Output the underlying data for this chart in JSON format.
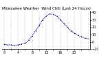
{
  "title": "Milwaukee Weather  Wind Chill (Last 24 Hours)",
  "line_color": "#0000dd",
  "marker_color": "#000000",
  "background_color": "#ffffff",
  "grid_color": "#888888",
  "hours": [
    0,
    1,
    2,
    3,
    4,
    5,
    6,
    7,
    8,
    9,
    10,
    11,
    12,
    13,
    14,
    15,
    16,
    17,
    18,
    19,
    20,
    21,
    22,
    23,
    24
  ],
  "values": [
    -3,
    -4,
    -4,
    -5,
    -4,
    -3,
    -2,
    2,
    8,
    15,
    22,
    30,
    35,
    38,
    37,
    35,
    30,
    25,
    20,
    15,
    12,
    9,
    7,
    5,
    4
  ],
  "ylim": [
    -10,
    42
  ],
  "yticks": [
    -10,
    0,
    10,
    20,
    30,
    40
  ],
  "title_fontsize": 4.0,
  "tick_fontsize": 3.5,
  "line_width": 0.6,
  "marker_size": 1.2,
  "figwidth": 1.6,
  "figheight": 0.87,
  "dpi": 100
}
